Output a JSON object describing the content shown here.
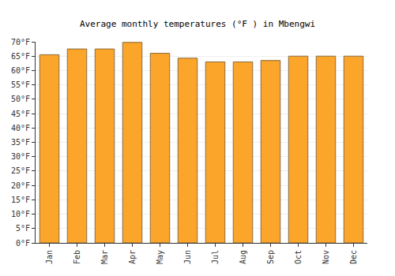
{
  "chart_data": {
    "type": "bar",
    "title": "Average monthly temperatures (°F ) in Mbengwi",
    "categories": [
      "Jan",
      "Feb",
      "Mar",
      "Apr",
      "May",
      "Jun",
      "Jul",
      "Aug",
      "Sep",
      "Oct",
      "Nov",
      "Dec"
    ],
    "values": [
      65.5,
      67.5,
      67.5,
      69.8,
      66,
      64.3,
      63,
      63,
      63.5,
      65,
      65,
      65
    ],
    "color": "#fba52b",
    "ylim": [
      0,
      70
    ],
    "yticks": [
      {
        "value": 0,
        "label": "0°F"
      },
      {
        "value": 5,
        "label": "5°F"
      },
      {
        "value": 10,
        "label": "10°F"
      },
      {
        "value": 15,
        "label": "15°F"
      },
      {
        "value": 20,
        "label": "20°F"
      },
      {
        "value": 25,
        "label": "25°F"
      },
      {
        "value": 30,
        "label": "30°F"
      },
      {
        "value": 35,
        "label": "35°F"
      },
      {
        "value": 40,
        "label": "40°F"
      },
      {
        "value": 45,
        "label": "45°F"
      },
      {
        "value": 50,
        "label": "50°F"
      },
      {
        "value": 55,
        "label": "55°F"
      },
      {
        "value": 60,
        "label": "60°F"
      },
      {
        "value": 65,
        "label": "65°F"
      },
      {
        "value": 70,
        "label": "70°F"
      }
    ],
    "grid": true
  }
}
